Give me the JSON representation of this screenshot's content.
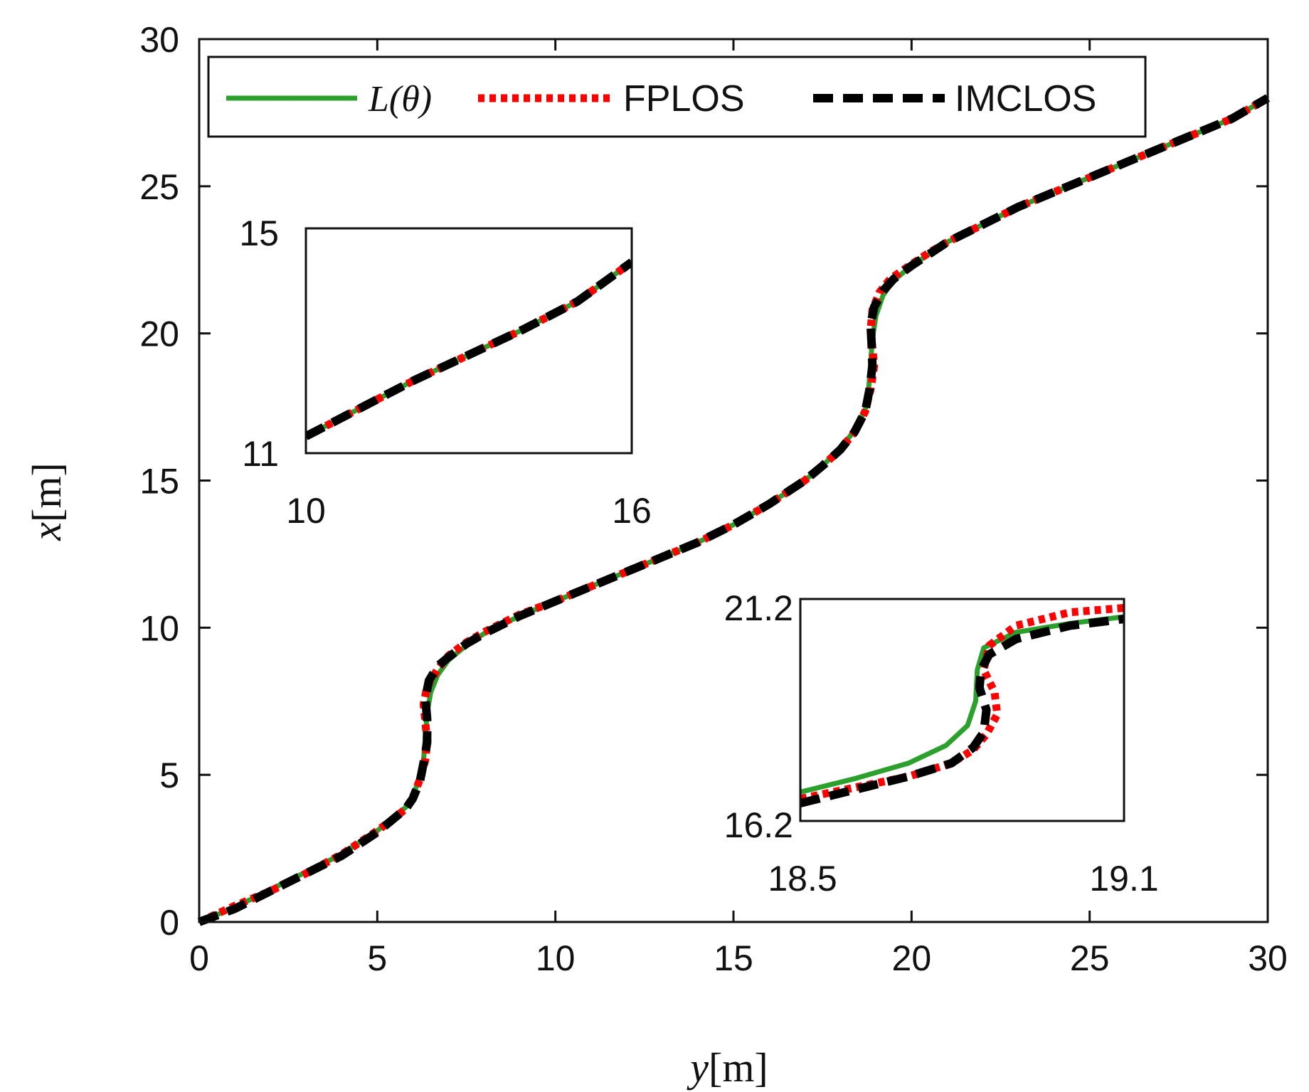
{
  "chart_data": {
    "type": "line",
    "xlabel": "y[m]",
    "ylabel": "x[m]",
    "xlabel_var": "y",
    "xlabel_unit": "[m]",
    "ylabel_var": "x",
    "ylabel_unit": "[m]",
    "xlim": [
      0,
      30
    ],
    "ylim": [
      0,
      30
    ],
    "xticks": [
      0,
      5,
      10,
      15,
      20,
      25,
      30
    ],
    "yticks": [
      0,
      5,
      10,
      15,
      20,
      25,
      30
    ],
    "xtick_labels": [
      "0",
      "5",
      "10",
      "15",
      "20",
      "25",
      "30"
    ],
    "ytick_labels": [
      "0",
      "5",
      "10",
      "15",
      "20",
      "25",
      "30"
    ],
    "grid": false,
    "legend": {
      "placement": "top",
      "entries": [
        {
          "label": "L(θ)",
          "style": "solid",
          "color": "#2ca02c"
        },
        {
          "label": "FPLOS",
          "style": "dotted",
          "color": "#ff0000"
        },
        {
          "label": "IMCLOS",
          "style": "dashed",
          "color": "#000000"
        }
      ]
    },
    "series": [
      {
        "name": "L(θ)",
        "color": "#2ca02c",
        "style": "solid",
        "x": [
          0,
          1,
          2,
          3,
          4,
          5,
          5.5,
          5.8,
          6.0,
          6.2,
          6.3,
          6.35,
          6.4,
          6.5,
          6.7,
          7,
          7.5,
          8,
          9,
          10,
          11,
          12,
          13,
          14,
          15,
          16,
          17,
          17.5,
          18,
          18.4,
          18.7,
          18.8,
          18.85,
          18.9,
          19.0,
          19.2,
          19.5,
          20,
          20.5,
          21,
          22,
          23,
          24,
          25,
          26,
          27,
          28,
          29,
          30
        ],
        "y": [
          0,
          0.5,
          1.1,
          1.7,
          2.3,
          3.1,
          3.6,
          3.9,
          4.3,
          4.9,
          5.5,
          6.3,
          7.1,
          7.8,
          8.4,
          8.9,
          9.4,
          9.8,
          10.4,
          10.9,
          11.4,
          11.9,
          12.4,
          12.9,
          13.5,
          14.2,
          15.0,
          15.5,
          16.1,
          16.7,
          17.4,
          18.2,
          19.0,
          19.8,
          20.6,
          21.3,
          21.8,
          22.3,
          22.7,
          23.1,
          23.7,
          24.3,
          24.8,
          25.3,
          25.8,
          26.3,
          26.8,
          27.3,
          28
        ]
      },
      {
        "name": "FPLOS",
        "color": "#ff0000",
        "style": "dotted",
        "x": [
          0,
          1,
          2,
          3,
          4,
          5,
          5.5,
          5.8,
          6.0,
          6.2,
          6.35,
          6.4,
          6.35,
          6.3,
          6.4,
          6.7,
          7,
          7.5,
          8,
          9,
          10,
          11,
          12,
          13,
          14,
          15,
          16,
          17,
          17.5,
          18,
          18.4,
          18.7,
          18.85,
          18.95,
          18.9,
          18.85,
          18.9,
          19.1,
          19.4,
          20,
          20.5,
          21,
          22,
          23,
          24,
          25,
          26,
          27,
          28,
          29,
          30
        ],
        "y": [
          0,
          0.55,
          1.05,
          1.65,
          2.3,
          3.1,
          3.55,
          3.85,
          4.25,
          4.85,
          5.5,
          6.1,
          6.8,
          7.4,
          8.0,
          8.6,
          9.05,
          9.5,
          9.85,
          10.45,
          10.9,
          11.4,
          11.9,
          12.4,
          12.9,
          13.5,
          14.2,
          15.0,
          15.5,
          16.05,
          16.65,
          17.35,
          18.1,
          18.9,
          19.5,
          20.1,
          20.8,
          21.4,
          21.85,
          22.35,
          22.75,
          23.1,
          23.7,
          24.3,
          24.8,
          25.3,
          25.8,
          26.3,
          26.8,
          27.3,
          28
        ]
      },
      {
        "name": "IMCLOS",
        "color": "#000000",
        "style": "dashed",
        "x": [
          0,
          1,
          2,
          3,
          4,
          5,
          5.5,
          5.8,
          6.0,
          6.2,
          6.3,
          6.4,
          6.4,
          6.35,
          6.45,
          6.7,
          7,
          7.5,
          8,
          9,
          10,
          11,
          12,
          13,
          14,
          15,
          16,
          17,
          17.5,
          18,
          18.4,
          18.7,
          18.82,
          18.9,
          18.88,
          18.85,
          18.95,
          19.2,
          19.5,
          20,
          20.5,
          21,
          22,
          23,
          24,
          25,
          26,
          27,
          28,
          29,
          30
        ],
        "y": [
          0,
          0.45,
          1.05,
          1.65,
          2.25,
          3.05,
          3.55,
          3.85,
          4.2,
          4.8,
          5.4,
          6.1,
          6.9,
          7.6,
          8.2,
          8.7,
          9.0,
          9.45,
          9.8,
          10.4,
          10.9,
          11.4,
          11.9,
          12.4,
          12.9,
          13.5,
          14.2,
          15.0,
          15.5,
          16.05,
          16.65,
          17.35,
          18.1,
          18.9,
          19.6,
          20.3,
          20.9,
          21.45,
          21.85,
          22.3,
          22.7,
          23.1,
          23.7,
          24.3,
          24.8,
          25.3,
          25.8,
          26.3,
          26.8,
          27.3,
          28
        ]
      }
    ],
    "insets": [
      {
        "name": "inset-upper",
        "xlim": [
          10,
          16
        ],
        "ylim": [
          11,
          15
        ],
        "xtick_labels": [
          "10",
          "16"
        ],
        "ytick_labels": [
          "11",
          "15"
        ],
        "lines": [
          {
            "name": "L(θ)",
            "x": [
              10,
              11,
              12,
              13,
              14,
              15,
              16
            ],
            "y": [
              11.3,
              11.8,
              12.3,
              12.75,
              13.2,
              13.7,
              14.4
            ]
          },
          {
            "name": "FPLOS",
            "x": [
              10,
              11,
              12,
              13,
              14,
              15,
              16
            ],
            "y": [
              11.3,
              11.8,
              12.3,
              12.75,
              13.2,
              13.7,
              14.4
            ]
          },
          {
            "name": "IMCLOS",
            "x": [
              10,
              11,
              12,
              13,
              14,
              15,
              16
            ],
            "y": [
              11.3,
              11.8,
              12.3,
              12.75,
              13.2,
              13.7,
              14.4
            ]
          }
        ]
      },
      {
        "name": "inset-lower",
        "xlim": [
          18.5,
          19.1
        ],
        "ylim": [
          16.2,
          21.2
        ],
        "xtick_labels": [
          "18.5",
          "19.1"
        ],
        "ytick_labels": [
          "21.2",
          "16.2"
        ],
        "lines": [
          {
            "name": "L(θ)",
            "x": [
              18.5,
              18.6,
              18.7,
              18.77,
              18.81,
              18.825,
              18.828,
              18.84,
              18.9,
              19.0,
              19.1
            ],
            "y": [
              16.85,
              17.15,
              17.5,
              17.9,
              18.35,
              18.9,
              19.6,
              20.1,
              20.45,
              20.65,
              20.8
            ]
          },
          {
            "name": "FPLOS",
            "x": [
              18.5,
              18.6,
              18.7,
              18.78,
              18.82,
              18.845,
              18.865,
              18.86,
              18.84,
              18.85,
              18.9,
              19.0,
              19.1
            ],
            "y": [
              16.7,
              16.95,
              17.2,
              17.5,
              17.8,
              18.15,
              18.6,
              19.1,
              19.6,
              20.15,
              20.6,
              20.9,
              21.0
            ]
          },
          {
            "name": "IMCLOS",
            "x": [
              18.5,
              18.6,
              18.7,
              18.78,
              18.82,
              18.84,
              18.845,
              18.832,
              18.835,
              18.85,
              18.9,
              19.0,
              19.1
            ],
            "y": [
              16.6,
              16.9,
              17.2,
              17.5,
              17.85,
              18.2,
              18.7,
              19.2,
              19.6,
              19.95,
              20.3,
              20.6,
              20.75
            ]
          }
        ]
      }
    ]
  }
}
